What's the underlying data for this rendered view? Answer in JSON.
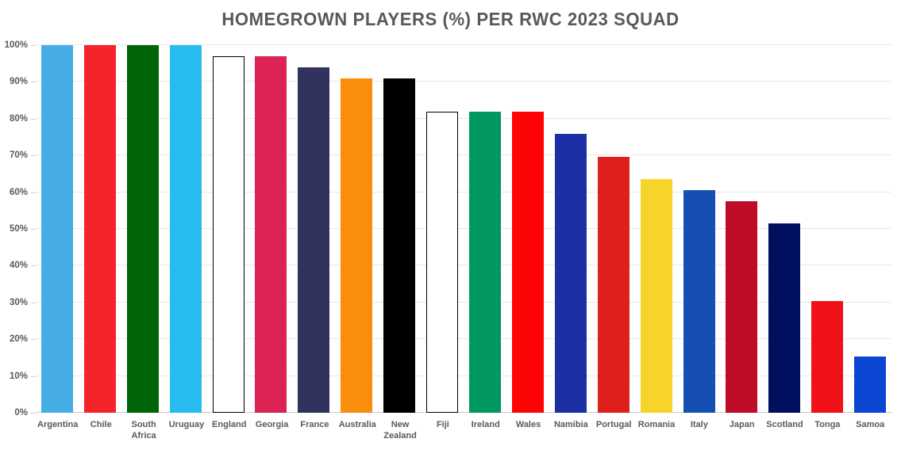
{
  "chart_data": {
    "type": "bar",
    "title": "HOMEGROWN PLAYERS (%) PER RWC 2023 SQUAD",
    "categories": [
      "Argentina",
      "Chile",
      "South Africa",
      "Uruguay",
      "England",
      "Georgia",
      "France",
      "Australia",
      "New Zealand",
      "Fiji",
      "Ireland",
      "Wales",
      "Namibia",
      "Portugal",
      "Romania",
      "Italy",
      "Japan",
      "Scotland",
      "Tonga",
      "Samoa"
    ],
    "values": [
      100,
      100,
      100,
      100,
      97,
      97,
      93.9,
      90.9,
      90.9,
      81.8,
      81.8,
      81.8,
      75.8,
      69.7,
      63.6,
      60.6,
      57.6,
      51.5,
      30.3,
      15.2
    ],
    "bar_colors": [
      "#45ACE4",
      "#F5232B",
      "#006409",
      "#28BBF0",
      "#FFFFFF",
      "#DC2353",
      "#32325F",
      "#F98D0C",
      "#000000",
      "#FFFFFF",
      "#00985F",
      "#FE0404",
      "#1C2FA5",
      "#DD201B",
      "#F6D42A",
      "#164FB4",
      "#BE0C28",
      "#00105F",
      "#F01018",
      "#0B46D2"
    ],
    "bar_borders": [
      "none",
      "none",
      "none",
      "none",
      "#000000",
      "none",
      "none",
      "none",
      "none",
      "#000000",
      "none",
      "none",
      "none",
      "none",
      "none",
      "none",
      "none",
      "none",
      "none",
      "none"
    ],
    "xlabel": "",
    "ylabel": "",
    "ylim": [
      0,
      100
    ],
    "ytick_step": 10,
    "ytick_labels": [
      "0%",
      "10%",
      "20%",
      "30%",
      "40%",
      "50%",
      "60%",
      "70%",
      "80%",
      "90%",
      "100%"
    ],
    "grid": "horizontal",
    "legend": "none",
    "colors": {
      "title_text": "#58595B",
      "axis_text": "#58595B",
      "gridline": "#E8E8E8",
      "baseline": "#C9C9C9",
      "background": "#FFFFFF"
    }
  }
}
